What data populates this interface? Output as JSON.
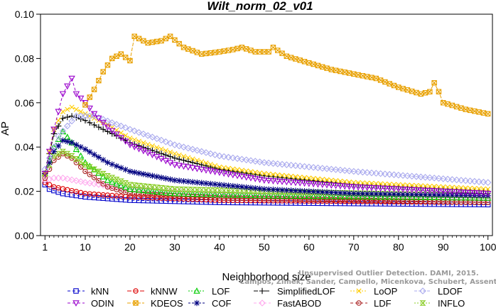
{
  "chart_data": {
    "type": "line",
    "title": "Wilt_norm_02_v01",
    "xlabel": "Neighborhood size",
    "ylabel": "AP",
    "xlim": [
      0,
      101
    ],
    "ylim": [
      0.0,
      0.1
    ],
    "xticks": [
      "1",
      "10",
      "20",
      "30",
      "40",
      "50",
      "60",
      "70",
      "80",
      "90",
      "100"
    ],
    "yticks": [
      "0.00",
      "0.02",
      "0.04",
      "0.06",
      "0.08",
      "0.10"
    ],
    "grid": false,
    "legend_position": "bottom",
    "watermark": [
      "Unsupervised Outlier Detection. DAMI, 2015.",
      "Campos, Zimek, Sander, Campello, Micenkova, Schubert, Assent, Houle"
    ],
    "series": [
      {
        "name": "kNN",
        "color": "#0000cc",
        "marker": "square",
        "dash": "4,3",
        "points": [
          [
            1,
            0.023
          ],
          [
            2,
            0.021
          ],
          [
            5,
            0.019
          ],
          [
            10,
            0.0175
          ],
          [
            20,
            0.016
          ],
          [
            40,
            0.015
          ],
          [
            70,
            0.0145
          ],
          [
            100,
            0.014
          ]
        ]
      },
      {
        "name": "kNNW",
        "color": "#dd0000",
        "marker": "circle",
        "dash": "6,3",
        "points": [
          [
            1,
            0.024
          ],
          [
            3,
            0.022
          ],
          [
            10,
            0.019
          ],
          [
            20,
            0.0175
          ],
          [
            40,
            0.016
          ],
          [
            70,
            0.0155
          ],
          [
            100,
            0.015
          ]
        ]
      },
      {
        "name": "LOF",
        "color": "#00cc00",
        "marker": "triangle",
        "dash": "2,2",
        "points": [
          [
            1,
            0.028
          ],
          [
            3,
            0.04
          ],
          [
            5,
            0.047
          ],
          [
            7,
            0.042
          ],
          [
            10,
            0.033
          ],
          [
            15,
            0.025
          ],
          [
            20,
            0.021
          ],
          [
            30,
            0.019
          ],
          [
            50,
            0.018
          ],
          [
            100,
            0.017
          ]
        ]
      },
      {
        "name": "SimplifiedLOF",
        "color": "#000000",
        "marker": "plus",
        "dash": "6,2",
        "points": [
          [
            1,
            0.028
          ],
          [
            3,
            0.046
          ],
          [
            5,
            0.053
          ],
          [
            7,
            0.054
          ],
          [
            10,
            0.052
          ],
          [
            15,
            0.047
          ],
          [
            20,
            0.042
          ],
          [
            30,
            0.035
          ],
          [
            40,
            0.03
          ],
          [
            50,
            0.027
          ],
          [
            70,
            0.023
          ],
          [
            100,
            0.02
          ]
        ]
      },
      {
        "name": "LoOP",
        "color": "#ffcc00",
        "marker": "x",
        "dash": "2,2",
        "points": [
          [
            1,
            0.028
          ],
          [
            3,
            0.048
          ],
          [
            5,
            0.056
          ],
          [
            7,
            0.058
          ],
          [
            10,
            0.055
          ],
          [
            15,
            0.05
          ],
          [
            20,
            0.044
          ],
          [
            30,
            0.037
          ],
          [
            40,
            0.031
          ],
          [
            50,
            0.028
          ],
          [
            70,
            0.024
          ],
          [
            100,
            0.021
          ]
        ]
      },
      {
        "name": "LDOF",
        "color": "#aaaaee",
        "marker": "diamond",
        "dash": "4,2",
        "points": [
          [
            1,
            0.03
          ],
          [
            4,
            0.045
          ],
          [
            8,
            0.054
          ],
          [
            12,
            0.054
          ],
          [
            20,
            0.048
          ],
          [
            30,
            0.041
          ],
          [
            40,
            0.036
          ],
          [
            50,
            0.033
          ],
          [
            70,
            0.029
          ],
          [
            100,
            0.024
          ]
        ]
      },
      {
        "name": "ODIN",
        "color": "#9900cc",
        "marker": "invtriangle",
        "dash": "4,3",
        "points": [
          [
            1,
            0.028
          ],
          [
            3,
            0.048
          ],
          [
            5,
            0.064
          ],
          [
            7,
            0.071
          ],
          [
            8,
            0.064
          ],
          [
            10,
            0.06
          ],
          [
            12,
            0.055
          ],
          [
            15,
            0.049
          ],
          [
            20,
            0.041
          ],
          [
            30,
            0.032
          ],
          [
            50,
            0.025
          ],
          [
            70,
            0.022
          ],
          [
            100,
            0.019
          ]
        ]
      },
      {
        "name": "KDEOS",
        "color": "#e8a000",
        "marker": "boxx",
        "dash": "5,2",
        "points": [
          [
            10,
            0.059
          ],
          [
            12,
            0.066
          ],
          [
            14,
            0.074
          ],
          [
            16,
            0.08
          ],
          [
            18,
            0.082
          ],
          [
            20,
            0.079
          ],
          [
            21,
            0.09
          ],
          [
            24,
            0.087
          ],
          [
            27,
            0.088
          ],
          [
            29,
            0.09
          ],
          [
            32,
            0.085
          ],
          [
            36,
            0.082
          ],
          [
            40,
            0.083
          ],
          [
            43,
            0.084
          ],
          [
            45,
            0.085
          ],
          [
            48,
            0.083
          ],
          [
            51,
            0.083
          ],
          [
            52,
            0.085
          ],
          [
            55,
            0.081
          ],
          [
            60,
            0.078
          ],
          [
            65,
            0.075
          ],
          [
            70,
            0.073
          ],
          [
            75,
            0.071
          ],
          [
            80,
            0.067
          ],
          [
            85,
            0.064
          ],
          [
            87,
            0.065
          ],
          [
            88,
            0.069
          ],
          [
            89,
            0.065
          ],
          [
            90,
            0.06
          ],
          [
            95,
            0.057
          ],
          [
            100,
            0.055
          ]
        ]
      },
      {
        "name": "COF",
        "color": "#000080",
        "marker": "star",
        "dash": "3,2",
        "points": [
          [
            1,
            0.028
          ],
          [
            3,
            0.038
          ],
          [
            5,
            0.043
          ],
          [
            7,
            0.042
          ],
          [
            10,
            0.039
          ],
          [
            15,
            0.033
          ],
          [
            20,
            0.029
          ],
          [
            30,
            0.025
          ],
          [
            50,
            0.021
          ],
          [
            70,
            0.019
          ],
          [
            100,
            0.018
          ]
        ]
      },
      {
        "name": "FastABOD",
        "color": "#ffaaee",
        "marker": "diamond",
        "dash": "4,3",
        "points": [
          [
            1,
            0.025
          ],
          [
            3,
            0.026
          ],
          [
            5,
            0.026
          ],
          [
            10,
            0.024
          ],
          [
            20,
            0.021
          ],
          [
            40,
            0.019
          ],
          [
            70,
            0.018
          ],
          [
            100,
            0.017
          ]
        ]
      },
      {
        "name": "LDF",
        "color": "#aa2222",
        "marker": "dotcircle",
        "dash": "4,3",
        "points": [
          [
            1,
            0.026
          ],
          [
            3,
            0.034
          ],
          [
            5,
            0.037
          ],
          [
            7,
            0.035
          ],
          [
            10,
            0.029
          ],
          [
            15,
            0.022
          ],
          [
            20,
            0.019
          ],
          [
            40,
            0.017
          ],
          [
            70,
            0.016
          ],
          [
            100,
            0.015
          ]
        ]
      },
      {
        "name": "INFLO",
        "color": "#88cc22",
        "marker": "hourglass",
        "dash": "2,2",
        "points": [
          [
            1,
            0.028
          ],
          [
            3,
            0.036
          ],
          [
            5,
            0.038
          ],
          [
            7,
            0.036
          ],
          [
            10,
            0.032
          ],
          [
            15,
            0.027
          ],
          [
            20,
            0.023
          ],
          [
            30,
            0.021
          ],
          [
            50,
            0.02
          ],
          [
            100,
            0.018
          ]
        ]
      }
    ]
  }
}
